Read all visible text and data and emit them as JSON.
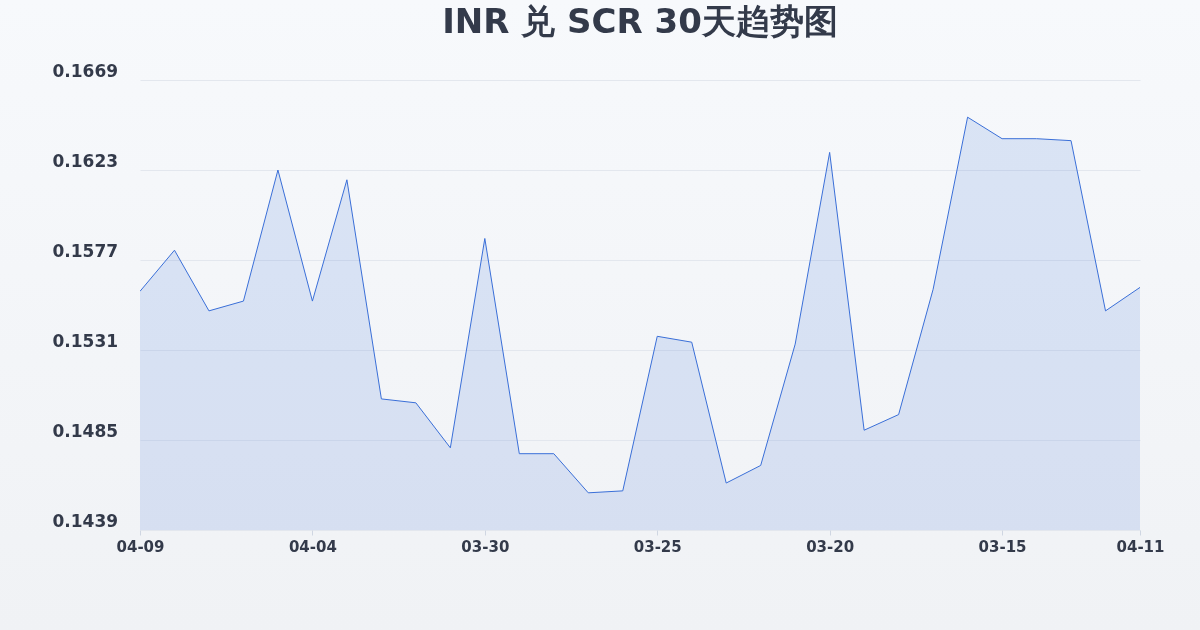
{
  "chart_data": {
    "type": "area",
    "title": "INR 兑 SCR 30天趋势图",
    "categories": [
      "04-09",
      null,
      null,
      null,
      null,
      "04-04",
      null,
      null,
      null,
      null,
      "03-30",
      null,
      null,
      null,
      null,
      "03-25",
      null,
      null,
      null,
      null,
      "03-20",
      null,
      null,
      null,
      null,
      "03-15",
      null,
      null,
      null,
      "04-11"
    ],
    "series": [
      {
        "color": "#3a6fd8",
        "values": [
          0.1561,
          0.1582,
          0.1551,
          0.1556,
          0.1623,
          0.1556,
          0.1618,
          0.1506,
          0.1504,
          0.1481,
          0.1588,
          0.1478,
          0.1478,
          0.1458,
          0.1459,
          0.1538,
          0.1535,
          0.1463,
          0.1472,
          0.1534,
          0.1632,
          0.149,
          0.1498,
          0.1562,
          0.165,
          0.1639,
          0.1639,
          0.1638,
          0.1551,
          0.1563
        ]
      }
    ],
    "ylim": [
      0.1439,
      0.1669
    ],
    "yticks": [
      0.1439,
      0.1485,
      0.1531,
      0.1577,
      0.1623,
      0.1669
    ],
    "grid": "y"
  }
}
